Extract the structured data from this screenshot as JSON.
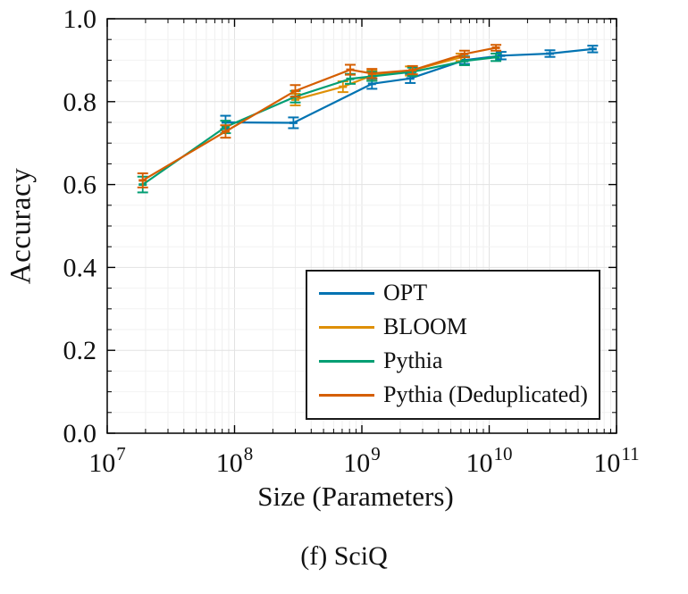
{
  "figure": {
    "caption": "(f) SciQ"
  },
  "chart_data": {
    "type": "line",
    "title": "",
    "xlabel": "Size (Parameters)",
    "ylabel": "Accuracy",
    "xscale": "log",
    "xlim": [
      10000000.0,
      100000000000.0
    ],
    "ylim": [
      0.0,
      1.0
    ],
    "x_tick_exponents": [
      7,
      8,
      9,
      10,
      11
    ],
    "x_tick_base": "10",
    "y_tick_values": [
      0.0,
      0.2,
      0.4,
      0.6,
      0.8,
      1.0
    ],
    "y_minor_step": 0.05,
    "grid": "on",
    "error_bars": true,
    "legend_position": "inside lower right",
    "series": [
      {
        "name": "OPT",
        "color": "#0173B2",
        "x": [
          85000000.0,
          290000000.0,
          1200000000.0,
          2400000000.0,
          6400000000.0,
          12400000000.0,
          30000000000.0,
          65000000000.0
        ],
        "y": [
          0.75,
          0.749,
          0.843,
          0.856,
          0.9,
          0.911,
          0.916,
          0.927
        ],
        "yerr": [
          0.016,
          0.013,
          0.012,
          0.011,
          0.009,
          0.009,
          0.008,
          0.008
        ]
      },
      {
        "name": "BLOOM",
        "color": "#DE8F05",
        "x": [
          300000000.0,
          710000000.0,
          1200000000.0,
          2400000000.0,
          6000000000.0
        ],
        "y": [
          0.805,
          0.836,
          0.863,
          0.874,
          0.907
        ],
        "yerr": [
          0.014,
          0.013,
          0.012,
          0.011,
          0.009
        ]
      },
      {
        "name": "Pythia",
        "color": "#029E73",
        "x": [
          19000000.0,
          85000000.0,
          300000000.0,
          810000000.0,
          1200000000.0,
          2500000000.0,
          6400000000.0,
          11300000000.0
        ],
        "y": [
          0.6,
          0.739,
          0.812,
          0.855,
          0.861,
          0.872,
          0.898,
          0.907
        ],
        "yerr": [
          0.019,
          0.015,
          0.014,
          0.012,
          0.011,
          0.01,
          0.01,
          0.009
        ]
      },
      {
        "name": "Pythia (Deduplicated)",
        "color": "#D55E00",
        "x": [
          19000000.0,
          85000000.0,
          300000000.0,
          810000000.0,
          1200000000.0,
          2500000000.0,
          6400000000.0,
          11300000000.0
        ],
        "y": [
          0.61,
          0.728,
          0.826,
          0.877,
          0.868,
          0.876,
          0.915,
          0.93
        ],
        "yerr": [
          0.017,
          0.015,
          0.014,
          0.012,
          0.011,
          0.01,
          0.008,
          0.007
        ]
      }
    ]
  }
}
